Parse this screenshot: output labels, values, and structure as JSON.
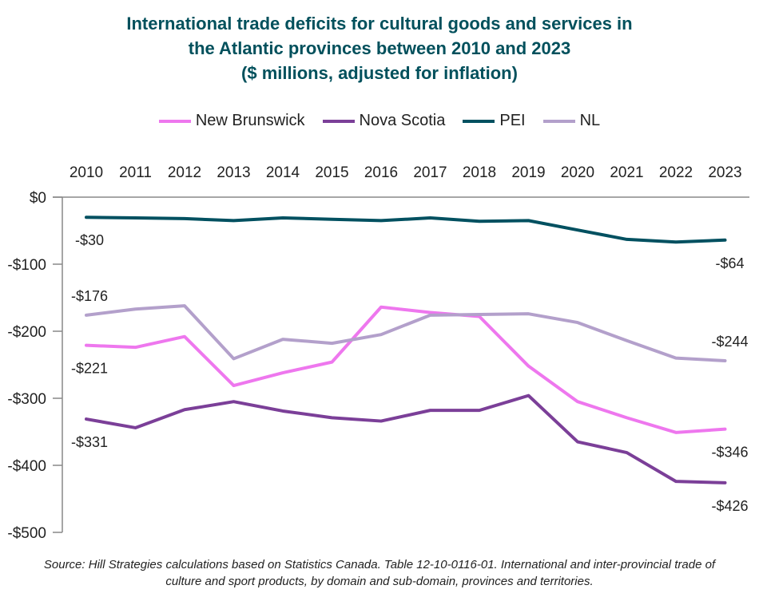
{
  "chart_data": {
    "type": "line",
    "title_lines": [
      "International trade deficits for cultural goods and services in",
      "the Atlantic provinces between 2010 and 2023",
      "($ millions, adjusted for inflation)"
    ],
    "categories": [
      "2010",
      "2011",
      "2012",
      "2013",
      "2014",
      "2015",
      "2016",
      "2017",
      "2018",
      "2019",
      "2020",
      "2021",
      "2022",
      "2023"
    ],
    "ylim": [
      -500,
      0
    ],
    "yticks": [
      0,
      -100,
      -200,
      -300,
      -400,
      -500
    ],
    "ytick_labels": [
      "$0",
      "-$100",
      "-$200",
      "-$300",
      "-$400",
      "-$500"
    ],
    "x_axis_position": "top",
    "grid": false,
    "legend_position": "top",
    "series": [
      {
        "name": "New Brunswick",
        "color": "#ee77ee",
        "values": [
          -221,
          -224,
          -208,
          -281,
          -262,
          -246,
          -164,
          -172,
          -178,
          -252,
          -305,
          -329,
          -351,
          -346
        ],
        "labels": [
          {
            "index": 0,
            "text": "-$221",
            "pos": "below"
          },
          {
            "index": 13,
            "text": "-$346",
            "pos": "below"
          }
        ]
      },
      {
        "name": "Nova Scotia",
        "color": "#7b3f98",
        "values": [
          -331,
          -344,
          -317,
          -305,
          -319,
          -329,
          -334,
          -318,
          -318,
          -296,
          -365,
          -381,
          -424,
          -426
        ],
        "labels": [
          {
            "index": 0,
            "text": "-$331",
            "pos": "below"
          },
          {
            "index": 13,
            "text": "-$426",
            "pos": "below"
          }
        ]
      },
      {
        "name": "PEI",
        "color": "#005060",
        "values": [
          -30,
          -31,
          -32,
          -35,
          -31,
          -33,
          -35,
          -31,
          -36,
          -35,
          -49,
          -63,
          -67,
          -64
        ],
        "labels": [
          {
            "index": 0,
            "text": "-$30",
            "pos": "below"
          },
          {
            "index": 13,
            "text": "-$64",
            "pos": "below"
          }
        ]
      },
      {
        "name": "NL",
        "color": "#b3a0cb",
        "values": [
          -176,
          -167,
          -162,
          -241,
          -212,
          -218,
          -205,
          -176,
          -175,
          -174,
          -187,
          -214,
          -240,
          -244
        ],
        "labels": [
          {
            "index": 0,
            "text": "-$176",
            "pos": "above"
          },
          {
            "index": 13,
            "text": "-$244",
            "pos": "above"
          }
        ]
      }
    ],
    "source": "Source: Hill Strategies calculations based on Statistics Canada. Table 12-10-0116-01. International and inter-provincial trade of culture and sport products, by domain and sub-domain, provinces and territories."
  }
}
